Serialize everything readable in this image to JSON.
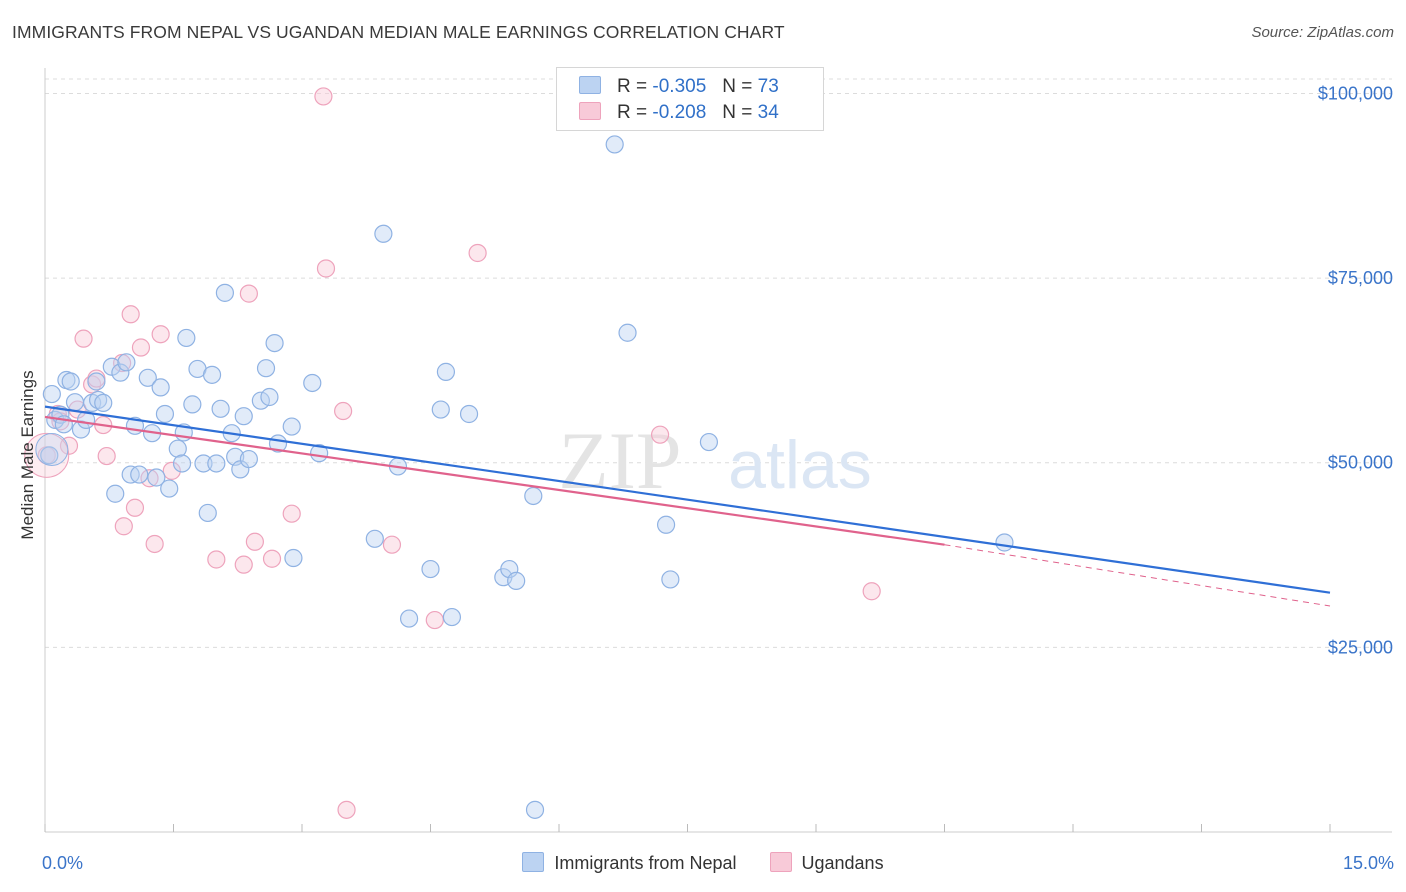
{
  "title": "IMMIGRANTS FROM NEPAL VS UGANDAN MEDIAN MALE EARNINGS CORRELATION CHART",
  "source": "Source: ZipAtlas.com",
  "watermark": {
    "zip": "ZIP",
    "atlas": "atlas"
  },
  "legend": {
    "r_label": "R =",
    "n_label": "N =",
    "nepal": {
      "r": "-0.305",
      "n": "73"
    },
    "ugandans": {
      "r": "-0.208",
      "n": "34"
    }
  },
  "chart_data": {
    "type": "scatter",
    "title": "IMMIGRANTS FROM NEPAL VS UGANDAN MEDIAN MALE EARNINGS CORRELATION CHART",
    "xlabel": "",
    "ylabel": "Median Male Earnings",
    "xlim": [
      0,
      15
    ],
    "ylim": [
      0,
      102500
    ],
    "x_tick_labels": [
      "0.0%",
      "15.0%"
    ],
    "y_ticks": [
      25000,
      50000,
      75000,
      100000
    ],
    "y_tick_labels": [
      "$25,000",
      "$50,000",
      "$75,000",
      "$100,000"
    ],
    "colors": {
      "nepal": "#8fb2e3",
      "nepal_line": "#2f6fd6",
      "ugandans": "#eea3bc",
      "ugandans_line": "#e0628c",
      "tick": "#3a74c9"
    },
    "series": [
      {
        "name": "Immigrants from Nepal",
        "points": [
          [
            0.05,
            51000
          ],
          [
            0.12,
            55800
          ],
          [
            0.18,
            56500
          ],
          [
            0.22,
            55200
          ],
          [
            0.25,
            61200
          ],
          [
            0.3,
            61000
          ],
          [
            0.35,
            58200
          ],
          [
            0.42,
            54500
          ],
          [
            0.48,
            55800
          ],
          [
            0.55,
            58100
          ],
          [
            0.6,
            61000
          ],
          [
            0.62,
            58500
          ],
          [
            0.68,
            58100
          ],
          [
            0.78,
            63000
          ],
          [
            0.82,
            45800
          ],
          [
            0.88,
            62200
          ],
          [
            0.95,
            63600
          ],
          [
            1.0,
            48400
          ],
          [
            1.05,
            55000
          ],
          [
            1.1,
            48400
          ],
          [
            1.2,
            61500
          ],
          [
            1.25,
            54000
          ],
          [
            1.3,
            48000
          ],
          [
            1.35,
            60200
          ],
          [
            1.4,
            56600
          ],
          [
            1.45,
            46500
          ],
          [
            1.55,
            51900
          ],
          [
            1.6,
            49900
          ],
          [
            1.62,
            54100
          ],
          [
            1.65,
            66900
          ],
          [
            1.72,
            57900
          ],
          [
            1.78,
            62700
          ],
          [
            1.85,
            49900
          ],
          [
            1.9,
            43200
          ],
          [
            1.95,
            61900
          ],
          [
            2.0,
            49900
          ],
          [
            2.05,
            57300
          ],
          [
            2.1,
            73000
          ],
          [
            2.18,
            54000
          ],
          [
            2.22,
            50800
          ],
          [
            2.28,
            49100
          ],
          [
            2.32,
            56300
          ],
          [
            2.38,
            50500
          ],
          [
            2.52,
            58400
          ],
          [
            2.58,
            62800
          ],
          [
            2.62,
            58900
          ],
          [
            2.68,
            66200
          ],
          [
            2.72,
            52600
          ],
          [
            2.88,
            54900
          ],
          [
            2.9,
            37100
          ],
          [
            3.12,
            60800
          ],
          [
            3.2,
            51300
          ],
          [
            3.85,
            39700
          ],
          [
            3.95,
            81000
          ],
          [
            4.12,
            49500
          ],
          [
            4.25,
            28900
          ],
          [
            4.5,
            35600
          ],
          [
            4.62,
            57200
          ],
          [
            4.68,
            62300
          ],
          [
            4.75,
            29100
          ],
          [
            4.95,
            56600
          ],
          [
            5.35,
            34500
          ],
          [
            5.42,
            35600
          ],
          [
            5.5,
            34000
          ],
          [
            5.7,
            45500
          ],
          [
            5.72,
            3000
          ],
          [
            6.65,
            93100
          ],
          [
            6.8,
            67600
          ],
          [
            7.25,
            41600
          ],
          [
            7.3,
            34200
          ],
          [
            7.75,
            52800
          ],
          [
            11.2,
            39200
          ],
          [
            0.08,
            59300
          ]
        ]
      },
      {
        "name": "Ugandans",
        "points": [
          [
            0.02,
            51000
          ],
          [
            0.15,
            56600
          ],
          [
            0.18,
            55600
          ],
          [
            0.28,
            52300
          ],
          [
            0.45,
            66800
          ],
          [
            0.55,
            60600
          ],
          [
            0.6,
            61400
          ],
          [
            0.68,
            55100
          ],
          [
            0.72,
            50900
          ],
          [
            0.9,
            63500
          ],
          [
            0.92,
            41400
          ],
          [
            1.0,
            70100
          ],
          [
            1.05,
            43900
          ],
          [
            1.12,
            65600
          ],
          [
            1.22,
            47900
          ],
          [
            1.28,
            39000
          ],
          [
            1.35,
            67400
          ],
          [
            1.48,
            48900
          ],
          [
            2.0,
            36900
          ],
          [
            2.32,
            36200
          ],
          [
            2.38,
            72900
          ],
          [
            2.45,
            39300
          ],
          [
            2.65,
            37000
          ],
          [
            2.88,
            43100
          ],
          [
            3.28,
            76300
          ],
          [
            3.48,
            57000
          ],
          [
            3.52,
            3000
          ],
          [
            3.25,
            99600
          ],
          [
            4.05,
            38900
          ],
          [
            4.55,
            28700
          ],
          [
            5.05,
            78400
          ],
          [
            7.18,
            53800
          ],
          [
            9.65,
            32600
          ],
          [
            0.38,
            57200
          ]
        ]
      }
    ],
    "trend_lines": [
      {
        "name": "Immigrants from Nepal",
        "x": [
          0,
          15
        ],
        "y": [
          57600,
          32400
        ]
      },
      {
        "name": "Ugandans",
        "x": [
          0,
          10.5
        ],
        "y": [
          56200,
          38900
        ],
        "dashed_extension_x": [
          10.5,
          15
        ],
        "dashed_extension_y": [
          38900,
          30600
        ]
      }
    ]
  }
}
